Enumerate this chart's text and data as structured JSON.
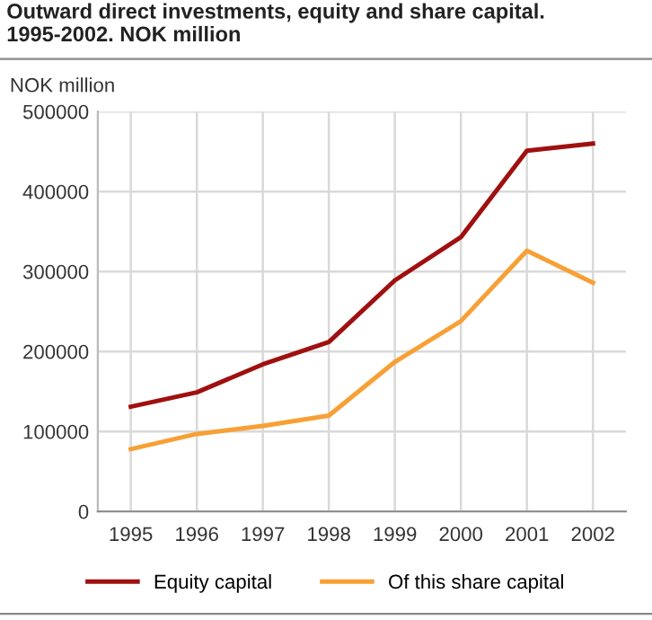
{
  "chart_data": {
    "type": "line",
    "title": "Outward direct investments, equity and share capital.\n1995-2002. NOK million",
    "ylabel": "NOK million",
    "categories": [
      "1995",
      "1996",
      "1997",
      "1998",
      "1999",
      "2000",
      "2001",
      "2002"
    ],
    "series": [
      {
        "name": "Equity capital",
        "color": "#a01010",
        "values": [
          131000,
          149000,
          184000,
          212000,
          289000,
          343000,
          451000,
          460000
        ]
      },
      {
        "name": "Of this share capital",
        "color": "#f7a035",
        "values": [
          78000,
          97000,
          107000,
          120000,
          187000,
          238000,
          326000,
          286000
        ]
      }
    ],
    "ylim": [
      0,
      500000
    ],
    "yticks": [
      0,
      100000,
      200000,
      300000,
      400000,
      500000
    ],
    "grid": true,
    "legend": "bottom"
  }
}
